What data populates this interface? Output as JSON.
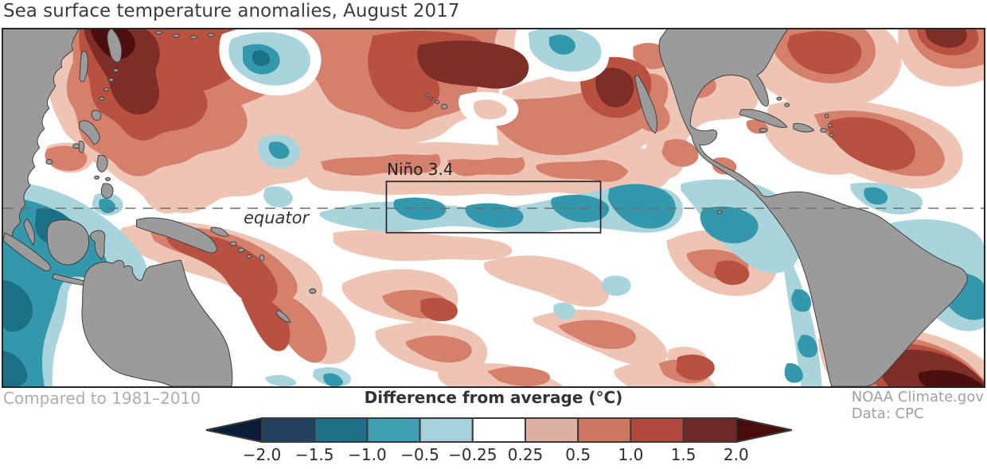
{
  "title": "Sea surface temperature anomalies, August 2017",
  "map": {
    "nino_box_label": "Niño 3.4",
    "equator_label": "equator"
  },
  "footer": {
    "baseline_note": "Compared to 1981–2010",
    "credit_line1": "NOAA Climate.gov",
    "credit_line2": "Data: CPC"
  },
  "colorbar": {
    "title": "Difference from average (°C)",
    "ticks": [
      "−2.0",
      "−1.5",
      "−1.0",
      "−0.5",
      "−0.25",
      "0.25",
      "0.5",
      "1.0",
      "1.5",
      "2.0"
    ],
    "segment_colors": [
      "#24415e",
      "#20708a",
      "#3d9fb2",
      "#a7d2db",
      "#ffffff",
      "#ddb1a0",
      "#cd7765",
      "#b04a3e",
      "#6e2a28"
    ],
    "left_arrow_color": "#0c1c38",
    "right_arrow_color": "#4a0c0a",
    "outline_color": "#3a3a3a"
  },
  "palette": {
    "land": "#9b9b9b",
    "land_outline": "#3f3f3f",
    "ocean": "#ffffff",
    "map_border": "#262626",
    "warm_025": "#eec4b4",
    "warm_05": "#d5806c",
    "warm_10": "#b85140",
    "warm_15": "#7e2d27",
    "warm_20": "#4d0f0d",
    "cool_025": "#a9d4dc",
    "cool_05": "#3398ac",
    "cool_10": "#1b7085"
  },
  "chart_data": {
    "type": "filled-contour-map",
    "title": "Sea surface temperature anomalies, August 2017",
    "variable": "Sea surface temperature anomaly",
    "units": "°C",
    "baseline_period": "1981–2010",
    "scale_tick_values": [
      -2.0,
      -1.5,
      -1.0,
      -0.5,
      -0.25,
      0.25,
      0.5,
      1.0,
      1.5,
      2.0
    ],
    "legend_title": "Difference from average (°C)",
    "annotations": [
      "Niño 3.4",
      "equator"
    ],
    "notable_patterns": {
      "nino34_box_along_equator": "cool anomalies −0.25 to −1.0",
      "northwest_and_central_north_pacific": "warm anomalies +0.5 to >+2.0",
      "eastern_indian_ocean_west_of_australia": "cool anomalies −0.5 to −1.5",
      "north_and_tropical_atlantic": "warm anomalies +0.25 to +2.0",
      "south_atlantic_off_argentina": "warm anomalies +1.5 to >+2.0",
      "peru_chile_coast": "cool anomalies −0.25 to −1.0"
    },
    "source": "Data: CPC"
  }
}
